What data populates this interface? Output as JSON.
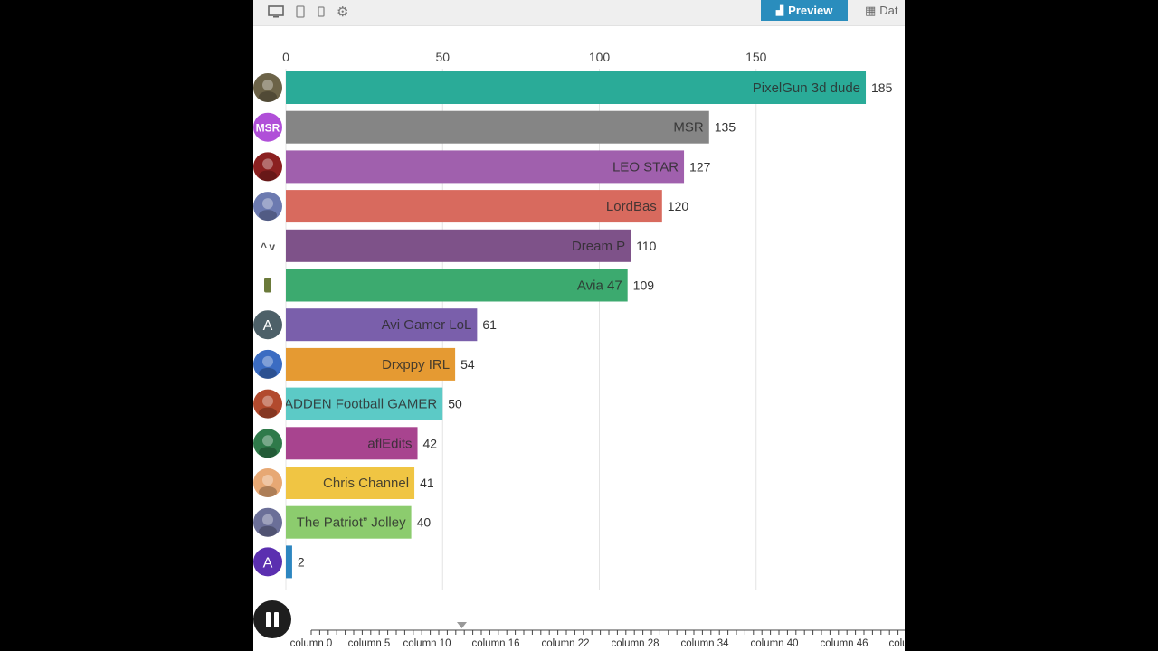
{
  "toolbar": {
    "preview_label": "Preview",
    "data_label": "Dat",
    "icons": [
      "desktop-icon",
      "tablet-icon",
      "mobile-icon",
      "gear-icon"
    ]
  },
  "chart_data": {
    "type": "bar",
    "orientation": "horizontal",
    "title": "",
    "xlabel": "",
    "ylabel": "",
    "xlim": [
      0,
      185
    ],
    "x_ticks": [
      0,
      50,
      100,
      150
    ],
    "grid": true,
    "legend": "none",
    "categories": [
      "PixelGun 3d dude",
      "MSR",
      "LEO STAR",
      "LordBas",
      "Dream P",
      "Avia 47",
      "Avi Gamer LoL",
      "Drxppy IRL",
      "MADDEN Football GAMER",
      "aflEdits",
      "Chris Channel",
      "The Patriot” Jolley",
      ""
    ],
    "values": [
      185,
      135,
      127,
      120,
      110,
      109,
      61,
      54,
      50,
      42,
      41,
      40,
      2
    ],
    "colors": [
      "#2aab98",
      "#858585",
      "#a060ad",
      "#d86a5e",
      "#7e5289",
      "#3caa6f",
      "#7a5fab",
      "#e59a32",
      "#5ccac6",
      "#a8448f",
      "#f0c543",
      "#8ccc6e",
      "#2d86c0"
    ],
    "avatars": [
      {
        "name": "cat-avatar",
        "letter": "",
        "color": "#6c6348"
      },
      {
        "name": "msr-avatar",
        "letter": "MSR",
        "color": "#b04fd8"
      },
      {
        "name": "player-avatar",
        "letter": "",
        "color": "#8b2020"
      },
      {
        "name": "player-avatar",
        "letter": "",
        "color": "#6c7ab0"
      },
      {
        "name": "emoticon-avatar",
        "letter": "^ v",
        "color": "#ffffff"
      },
      {
        "name": "figure-avatar",
        "letter": "",
        "color": "#ffffff"
      },
      {
        "name": "letter-avatar",
        "letter": "A",
        "color": "#4d6068"
      },
      {
        "name": "team-avatar",
        "letter": "",
        "color": "#3b6cc2"
      },
      {
        "name": "player-avatar",
        "letter": "",
        "color": "#b24a2e"
      },
      {
        "name": "player-avatar",
        "letter": "",
        "color": "#2f7a4a"
      },
      {
        "name": "face-avatar",
        "letter": "",
        "color": "#e7a874"
      },
      {
        "name": "flag-avatar",
        "letter": "",
        "color": "#6b6f98"
      },
      {
        "name": "letter-avatar",
        "letter": "A",
        "color": "#5b2fb0"
      }
    ]
  },
  "timeline": {
    "labels": [
      "column 0",
      "column 5",
      "column 10",
      "column 16",
      "column 22",
      "column 28",
      "column 34",
      "column 40",
      "column 46",
      "colu"
    ]
  }
}
